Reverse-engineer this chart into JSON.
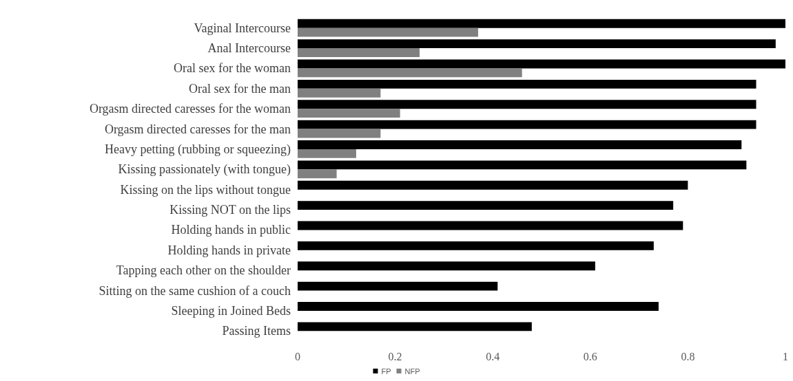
{
  "chart_data": {
    "type": "bar",
    "orientation": "horizontal",
    "categories": [
      "Vaginal Intercourse",
      "Anal Intercourse",
      "Oral sex for the woman",
      "Oral sex for the man",
      "Orgasm directed caresses for the woman",
      "Orgasm directed caresses for the man",
      "Heavy petting (rubbing or squeezing)",
      "Kissing passionately (with tongue)",
      "Kissing on the lips without tongue",
      "Kissing NOT on the lips",
      "Holding hands in public",
      "Holding hands in private",
      "Tapping each other on the shoulder",
      "Sitting on the same cushion of a couch",
      "Sleeping in Joined Beds",
      "Passing Items"
    ],
    "series": [
      {
        "name": "FP",
        "color": "#000000",
        "values": [
          1.0,
          0.98,
          1.0,
          0.94,
          0.94,
          0.94,
          0.91,
          0.92,
          0.8,
          0.77,
          0.79,
          0.73,
          0.61,
          0.41,
          0.74,
          0.48
        ]
      },
      {
        "name": "NFP",
        "color": "#808080",
        "values": [
          0.37,
          0.25,
          0.46,
          0.17,
          0.21,
          0.17,
          0.12,
          0.08,
          null,
          null,
          null,
          null,
          null,
          null,
          null,
          null
        ]
      }
    ],
    "xlim": [
      0,
      1
    ],
    "xticks": [
      0,
      0.2,
      0.4,
      0.6,
      0.8,
      1
    ],
    "grid": false,
    "legend": "bottom"
  }
}
